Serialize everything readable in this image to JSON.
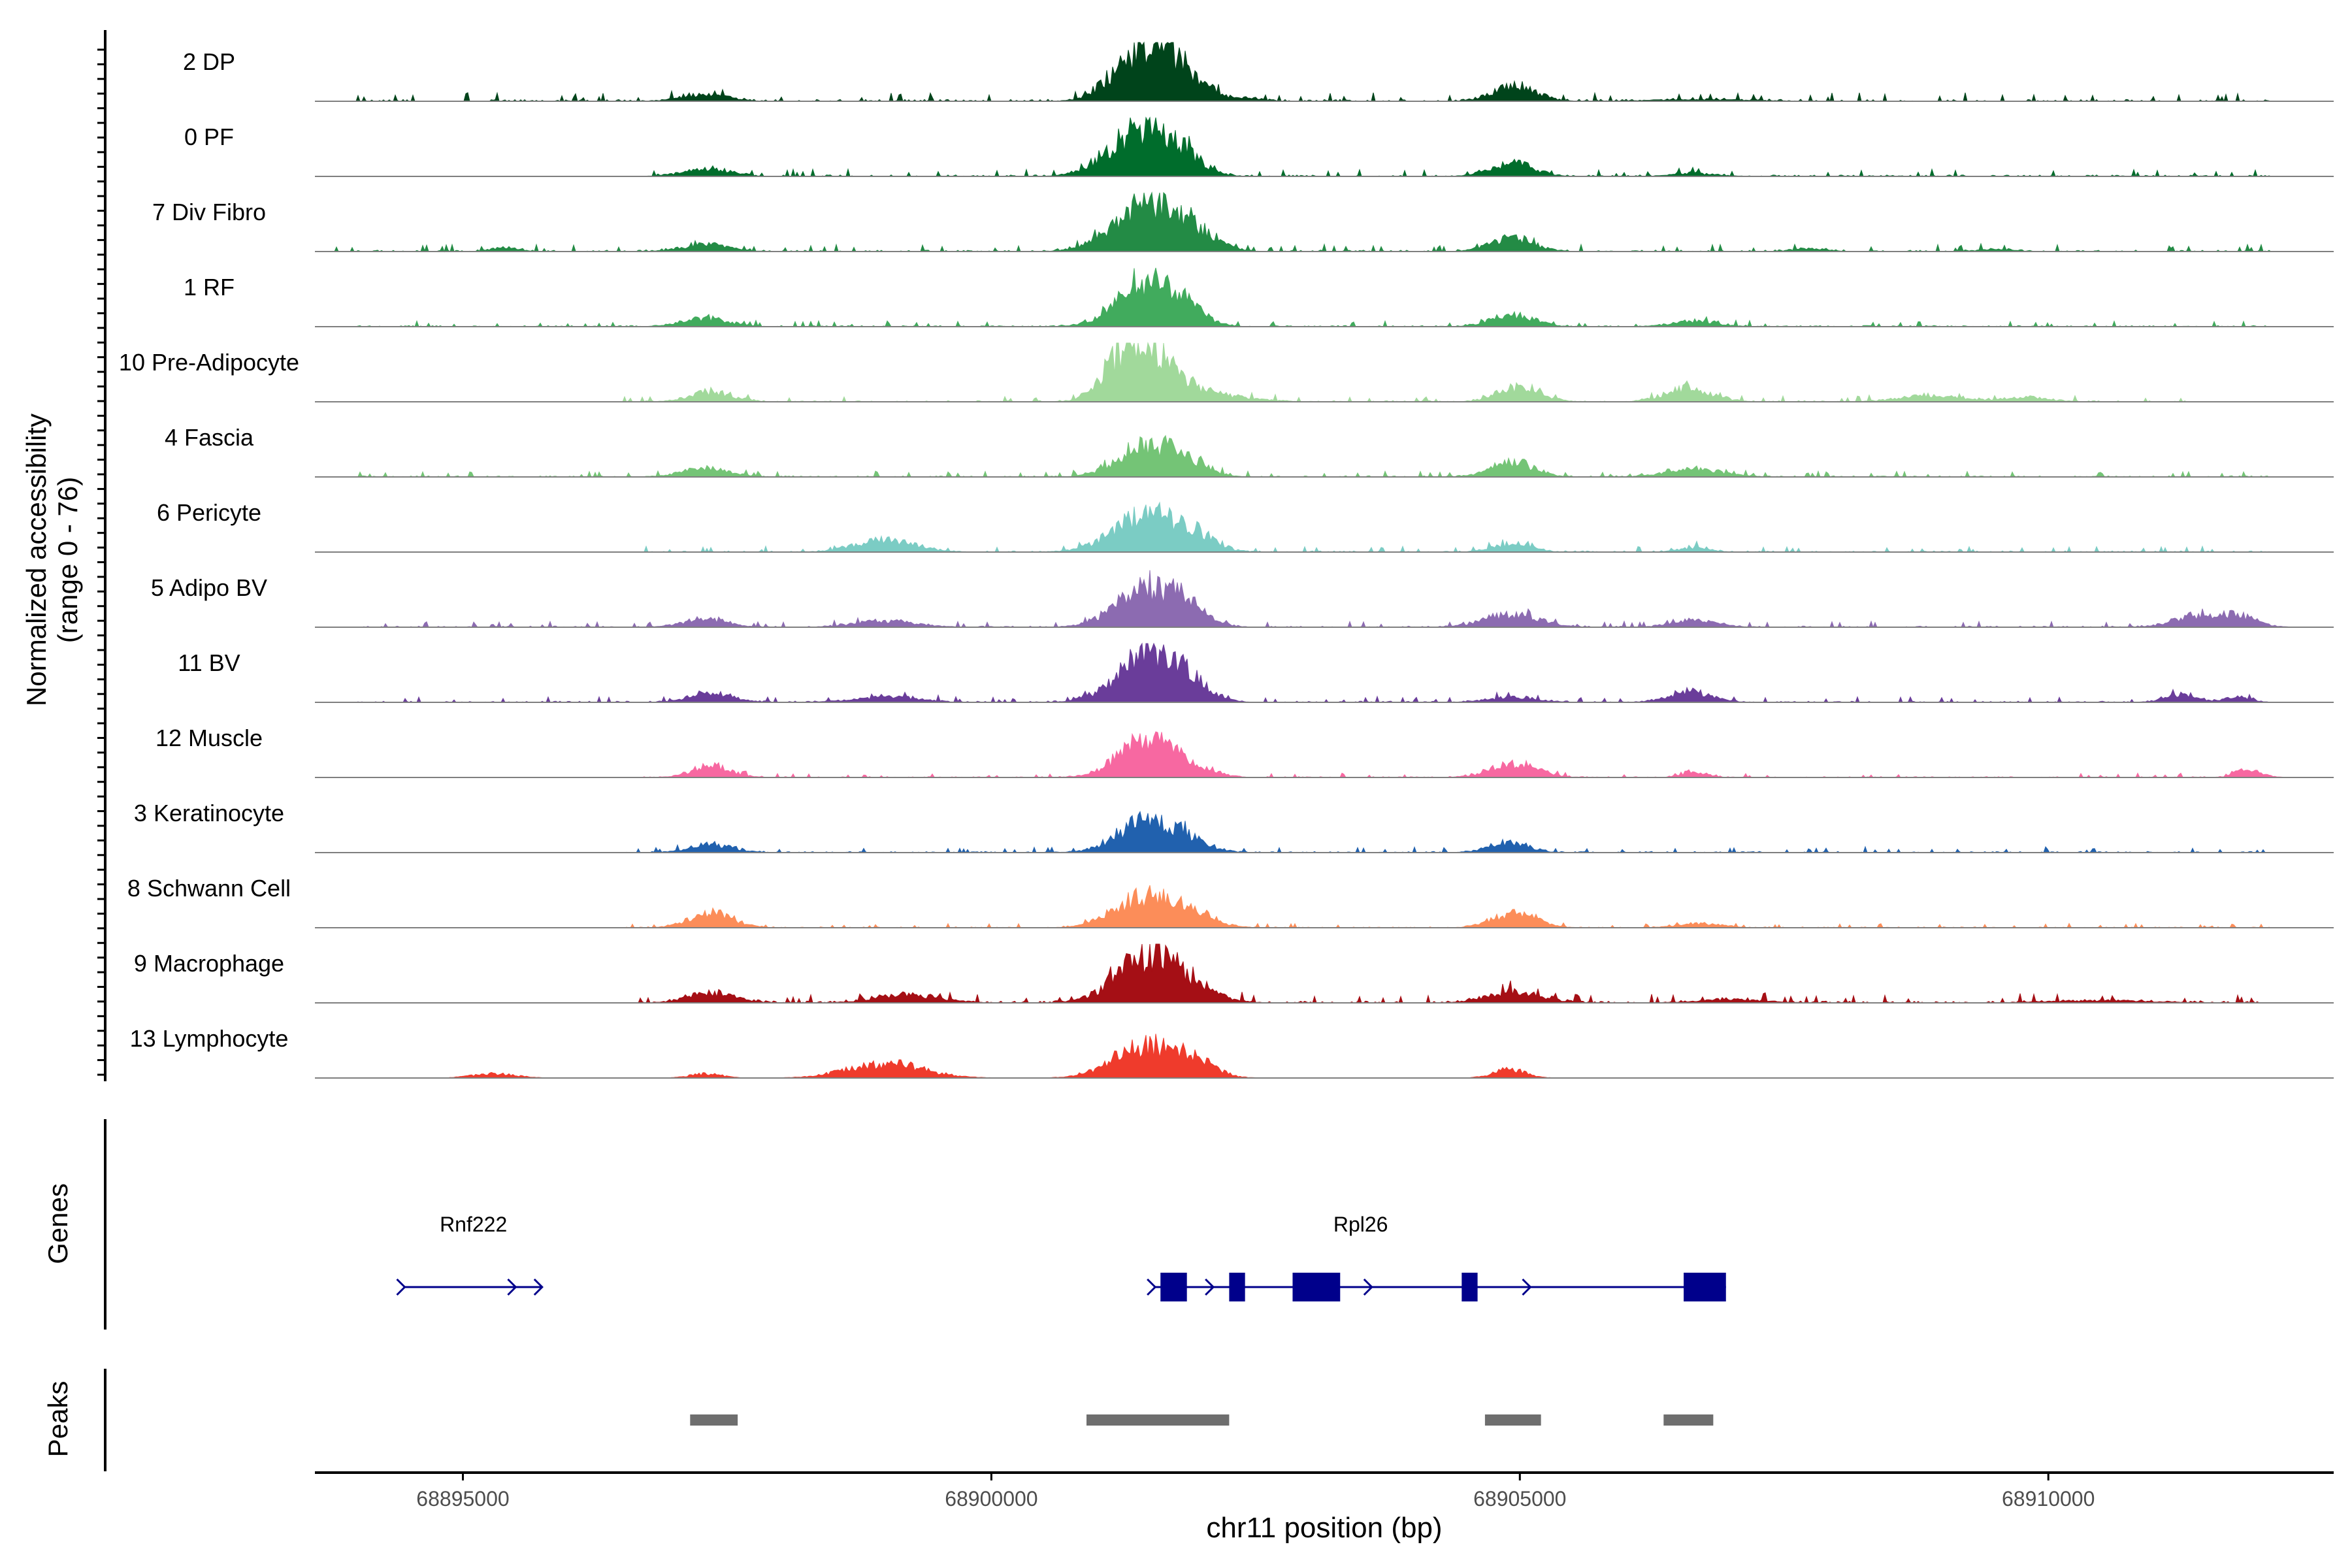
{
  "chart_data": {
    "type": "area",
    "title": "",
    "xlabel": "chr11 position (bp)",
    "ylabel_lines": [
      "Normalized accessibility",
      "(range 0 - 76)"
    ],
    "y_range": [
      0,
      76
    ],
    "x_range": [
      68893600,
      68912700
    ],
    "x_ticks": [
      {
        "value": 68895000,
        "label": "68895000"
      },
      {
        "value": 68900000,
        "label": "68900000"
      },
      {
        "value": 68905000,
        "label": "68905000"
      },
      {
        "value": 68910000,
        "label": "68910000"
      }
    ],
    "tracks": [
      {
        "name": "2 DP",
        "color": "#00441b",
        "peaks": [
          [
            68897300,
            220,
            0.11
          ],
          [
            68901500,
            260,
            0.92
          ],
          [
            68901200,
            200,
            0.18
          ],
          [
            68901850,
            200,
            0.28
          ],
          [
            68902400,
            150,
            0.06
          ],
          [
            68904950,
            200,
            0.28
          ],
          [
            68906700,
            500,
            0.03
          ]
        ],
        "base": 0.03,
        "noise": [
          68894000,
          68912100
        ]
      },
      {
        "name": "0 PF",
        "color": "#006d2c",
        "peaks": [
          [
            68897300,
            220,
            0.13
          ],
          [
            68901450,
            280,
            0.88
          ],
          [
            68901050,
            200,
            0.1
          ],
          [
            68901850,
            180,
            0.2
          ],
          [
            68904930,
            200,
            0.25
          ],
          [
            68906650,
            220,
            0.05
          ]
        ],
        "base": 0.025,
        "noise": [
          68896800,
          68912100
        ]
      },
      {
        "name": "7 Div Fibro",
        "color": "#238b45",
        "peaks": [
          [
            68895400,
            120,
            0.08
          ],
          [
            68897300,
            220,
            0.13
          ],
          [
            68901450,
            300,
            0.85
          ],
          [
            68901850,
            200,
            0.3
          ],
          [
            68902150,
            150,
            0.08
          ],
          [
            68904930,
            200,
            0.25
          ],
          [
            68907750,
            150,
            0.06
          ],
          [
            68909500,
            150,
            0.04
          ]
        ],
        "base": 0.025,
        "noise": [
          68893800,
          68912100
        ]
      },
      {
        "name": "1 RF",
        "color": "#41ab5d",
        "peaks": [
          [
            68897300,
            220,
            0.15
          ],
          [
            68901450,
            260,
            0.82
          ],
          [
            68901800,
            200,
            0.25
          ],
          [
            68904930,
            200,
            0.22
          ],
          [
            68906650,
            220,
            0.1
          ]
        ],
        "base": 0.02,
        "noise": [
          68894000,
          68912100
        ]
      },
      {
        "name": "10 Pre-Adipocyte",
        "color": "#a1d99b",
        "peaks": [
          [
            68897350,
            200,
            0.18
          ],
          [
            68901450,
            250,
            0.92
          ],
          [
            68901200,
            180,
            0.3
          ],
          [
            68901900,
            400,
            0.18
          ],
          [
            68905000,
            200,
            0.28
          ],
          [
            68906600,
            220,
            0.25
          ],
          [
            68908900,
            300,
            0.12
          ],
          [
            68909800,
            200,
            0.08
          ]
        ],
        "base": 0.02,
        "noise": [
          68896500,
          68911300
        ]
      },
      {
        "name": "4 Fascia",
        "color": "#74c476",
        "peaks": [
          [
            68897300,
            220,
            0.16
          ],
          [
            68901450,
            260,
            0.55
          ],
          [
            68901850,
            200,
            0.25
          ],
          [
            68904930,
            200,
            0.28
          ],
          [
            68906650,
            250,
            0.15
          ]
        ],
        "base": 0.02,
        "noise": [
          68894000,
          68912100
        ]
      },
      {
        "name": "6 Pericyte",
        "color": "#7bccc4",
        "peaks": [
          [
            68899000,
            280,
            0.22
          ],
          [
            68901450,
            300,
            0.65
          ],
          [
            68901900,
            200,
            0.3
          ],
          [
            68904930,
            180,
            0.15
          ],
          [
            68906650,
            150,
            0.08
          ]
        ],
        "base": 0.02,
        "noise": [
          68896700,
          68912100
        ]
      },
      {
        "name": "5 Adipo BV",
        "color": "#8c6bb1",
        "peaks": [
          [
            68897300,
            200,
            0.16
          ],
          [
            68899000,
            280,
            0.12
          ],
          [
            68901450,
            280,
            0.68
          ],
          [
            68901850,
            200,
            0.3
          ],
          [
            68904930,
            250,
            0.25
          ],
          [
            68906650,
            200,
            0.14
          ],
          [
            68911350,
            200,
            0.18
          ],
          [
            68911750,
            200,
            0.22
          ]
        ],
        "base": 0.02,
        "noise": [
          68894000,
          68912100
        ]
      },
      {
        "name": "11 BV",
        "color": "#6a3d9a",
        "peaks": [
          [
            68897350,
            200,
            0.18
          ],
          [
            68899000,
            300,
            0.1
          ],
          [
            68901450,
            280,
            0.8
          ],
          [
            68901800,
            220,
            0.35
          ],
          [
            68904930,
            220,
            0.1
          ],
          [
            68906600,
            200,
            0.2
          ],
          [
            68911250,
            150,
            0.14
          ],
          [
            68911800,
            120,
            0.1
          ]
        ],
        "base": 0.02,
        "noise": [
          68894000,
          68912100
        ]
      },
      {
        "name": "12 Muscle",
        "color": "#f768a1",
        "peaks": [
          [
            68897350,
            180,
            0.22
          ],
          [
            68901450,
            250,
            0.68
          ],
          [
            68901900,
            200,
            0.18
          ],
          [
            68904950,
            220,
            0.26
          ],
          [
            68906650,
            120,
            0.1
          ],
          [
            68911900,
            120,
            0.16
          ]
        ],
        "base": 0.015,
        "noise": [
          68896600,
          68912100
        ]
      },
      {
        "name": "3 Keratinocyte",
        "color": "#2161ae",
        "peaks": [
          [
            68897350,
            200,
            0.15
          ],
          [
            68901450,
            260,
            0.58
          ],
          [
            68901850,
            200,
            0.2
          ],
          [
            68904900,
            180,
            0.2
          ]
        ],
        "base": 0.02,
        "noise": [
          68896500,
          68912100
        ]
      },
      {
        "name": "8 Schwann Cell",
        "color": "#fc8d59",
        "peaks": [
          [
            68897350,
            200,
            0.28
          ],
          [
            68901450,
            280,
            0.55
          ],
          [
            68901900,
            220,
            0.22
          ],
          [
            68904950,
            200,
            0.28
          ],
          [
            68906700,
            200,
            0.08
          ]
        ],
        "base": 0.015,
        "noise": [
          68896500,
          68912100
        ]
      },
      {
        "name": "9 Macrophage",
        "color": "#a50f15",
        "peaks": [
          [
            68897350,
            220,
            0.18
          ],
          [
            68899200,
            300,
            0.15
          ],
          [
            68901450,
            280,
            0.8
          ],
          [
            68901850,
            250,
            0.3
          ],
          [
            68904950,
            250,
            0.22
          ],
          [
            68907000,
            300,
            0.06
          ],
          [
            68910500,
            500,
            0.04
          ]
        ],
        "base": 0.03,
        "noise": [
          68896600,
          68912100
        ]
      },
      {
        "name": "13 Lymphocyte",
        "color": "#ef3b2c",
        "peaks": [
          [
            68895300,
            200,
            0.08
          ],
          [
            68897300,
            150,
            0.08
          ],
          [
            68899000,
            350,
            0.28
          ],
          [
            68901450,
            300,
            0.6
          ],
          [
            68901900,
            200,
            0.28
          ],
          [
            68904900,
            150,
            0.16
          ]
        ],
        "base": 0.0,
        "noise": [
          68895200,
          68902300
        ]
      }
    ],
    "genes": [
      {
        "name": "Rnf222",
        "start": 68894450,
        "end": 68895750,
        "strand": "+",
        "exons": []
      },
      {
        "name": "Rpl26",
        "start": 68901550,
        "end": 68906950,
        "strand": "+",
        "exons": [
          [
            68901600,
            68901850
          ],
          [
            68902250,
            68902400
          ],
          [
            68902850,
            68903300
          ],
          [
            68904450,
            68904600
          ],
          [
            68906550,
            68906950
          ]
        ]
      }
    ],
    "peaks": [
      [
        68897150,
        68897600
      ],
      [
        68900900,
        68902250
      ],
      [
        68904670,
        68905200
      ],
      [
        68906360,
        68906830
      ]
    ],
    "panel_labels": {
      "genes": "Genes",
      "peaks": "Peaks"
    }
  }
}
